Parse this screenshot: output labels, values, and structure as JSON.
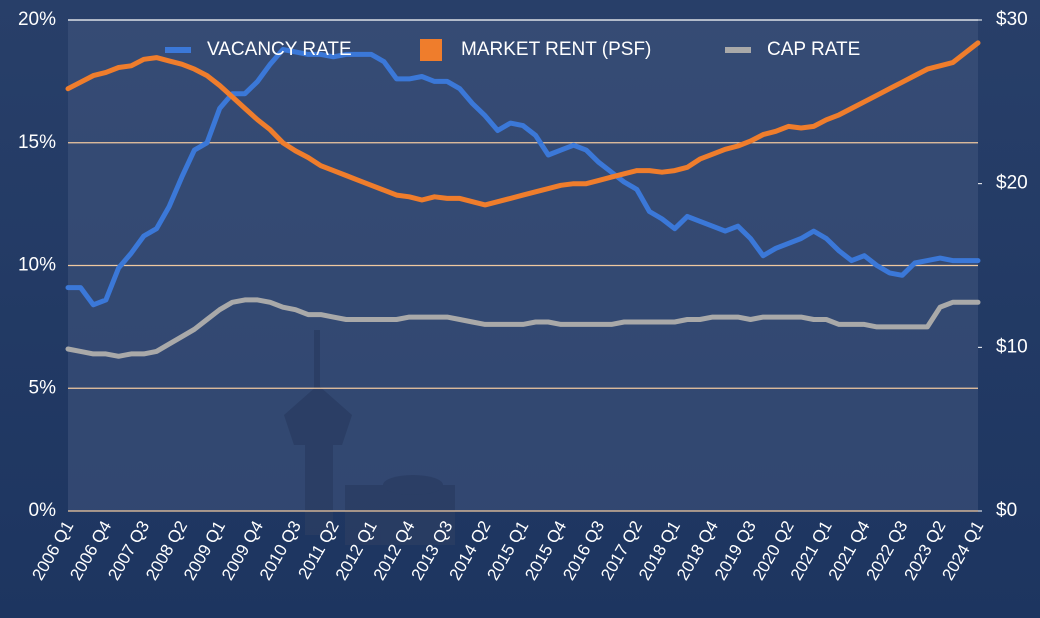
{
  "chart_data": {
    "type": "line",
    "categories": [
      "2006 Q1",
      null,
      null,
      "2006 Q4",
      null,
      null,
      "2007 Q3",
      null,
      null,
      "2008 Q2",
      null,
      null,
      "2009 Q1",
      null,
      null,
      "2009 Q4",
      null,
      null,
      "2010 Q3",
      null,
      null,
      "2011 Q2",
      null,
      null,
      "2012 Q1",
      null,
      null,
      "2012 Q4",
      null,
      null,
      "2013 Q3",
      null,
      null,
      "2014 Q2",
      null,
      null,
      "2015 Q1",
      null,
      null,
      "2015 Q4",
      null,
      null,
      "2016 Q3",
      null,
      null,
      "2017 Q2",
      null,
      null,
      "2018 Q1",
      null,
      null,
      "2018 Q4",
      null,
      null,
      "2019 Q3",
      null,
      null,
      "2020 Q2",
      null,
      null,
      "2021 Q1",
      null,
      null,
      "2021 Q4",
      null,
      null,
      "2022 Q3",
      null,
      null,
      "2023 Q2",
      null,
      null,
      "2024 Q1"
    ],
    "series": [
      {
        "name": "VACANCY RATE",
        "color": "#3b78d8",
        "marker": "line",
        "values": [
          9.1,
          9.1,
          8.4,
          8.6,
          9.9,
          10.5,
          11.2,
          11.5,
          12.4,
          13.6,
          14.7,
          15.0,
          16.4,
          17.0,
          17.0,
          17.5,
          18.2,
          18.8,
          18.7,
          18.6,
          18.6,
          18.5,
          18.6,
          18.6,
          18.6,
          18.3,
          17.6,
          17.6,
          17.7,
          17.5,
          17.5,
          17.2,
          16.6,
          16.1,
          15.5,
          15.8,
          15.7,
          15.3,
          14.5,
          14.7,
          14.9,
          14.7,
          14.2,
          13.8,
          13.4,
          13.1,
          12.2,
          11.9,
          11.5,
          12.0,
          11.8,
          11.6,
          11.4,
          11.6,
          11.1,
          10.4,
          10.7,
          10.9,
          11.1,
          11.4,
          11.1,
          10.6,
          10.2,
          10.4,
          10.0,
          9.7,
          9.6,
          10.1,
          10.2,
          10.3,
          10.2,
          10.2,
          10.2
        ]
      },
      {
        "name": "MARKET RENT (PSF)",
        "color": "#ef7d2c",
        "marker": "square",
        "axis": "y2",
        "values": [
          25.8,
          26.2,
          26.6,
          26.8,
          27.1,
          27.2,
          27.6,
          27.7,
          27.5,
          27.3,
          27.0,
          26.6,
          26.0,
          25.3,
          24.6,
          23.9,
          23.3,
          22.5,
          22.0,
          21.6,
          21.1,
          20.8,
          20.5,
          20.2,
          19.9,
          19.6,
          19.3,
          19.2,
          19.0,
          19.2,
          19.1,
          19.1,
          18.9,
          18.7,
          18.9,
          19.1,
          19.3,
          19.5,
          19.7,
          19.9,
          20.0,
          20.0,
          20.2,
          20.4,
          20.6,
          20.8,
          20.8,
          20.7,
          20.8,
          21.0,
          21.5,
          21.8,
          22.1,
          22.3,
          22.6,
          23.0,
          23.2,
          23.5,
          23.4,
          23.5,
          23.9,
          24.2,
          24.6,
          25.0,
          25.4,
          25.8,
          26.2,
          26.6,
          27.0,
          27.2,
          27.4,
          28.0,
          28.6
        ]
      },
      {
        "name": "CAP RATE",
        "color": "#a9a9a9",
        "marker": "line",
        "values": [
          6.6,
          6.5,
          6.4,
          6.4,
          6.3,
          6.4,
          6.4,
          6.5,
          6.8,
          7.1,
          7.4,
          7.8,
          8.2,
          8.5,
          8.6,
          8.6,
          8.5,
          8.3,
          8.2,
          8.0,
          8.0,
          7.9,
          7.8,
          7.8,
          7.8,
          7.8,
          7.8,
          7.9,
          7.9,
          7.9,
          7.9,
          7.8,
          7.7,
          7.6,
          7.6,
          7.6,
          7.6,
          7.7,
          7.7,
          7.6,
          7.6,
          7.6,
          7.6,
          7.6,
          7.7,
          7.7,
          7.7,
          7.7,
          7.7,
          7.8,
          7.8,
          7.9,
          7.9,
          7.9,
          7.8,
          7.9,
          7.9,
          7.9,
          7.9,
          7.8,
          7.8,
          7.6,
          7.6,
          7.6,
          7.5,
          7.5,
          7.5,
          7.5,
          7.5,
          8.3,
          8.5,
          8.5,
          8.5
        ]
      }
    ],
    "ylim": [
      0,
      20
    ],
    "yticks": [
      {
        "value": 0,
        "label": "0%"
      },
      {
        "value": 5,
        "label": "5%"
      },
      {
        "value": 10,
        "label": "10%"
      },
      {
        "value": 15,
        "label": "15%"
      },
      {
        "value": 20,
        "label": "20%"
      }
    ],
    "y2lim": [
      0,
      30
    ],
    "y2ticks": [
      {
        "value": 0,
        "label": "$0"
      },
      {
        "value": 10,
        "label": "$10"
      },
      {
        "value": 20,
        "label": "$20"
      },
      {
        "value": 30,
        "label": "$30"
      }
    ],
    "grid": true,
    "legend": "top"
  }
}
